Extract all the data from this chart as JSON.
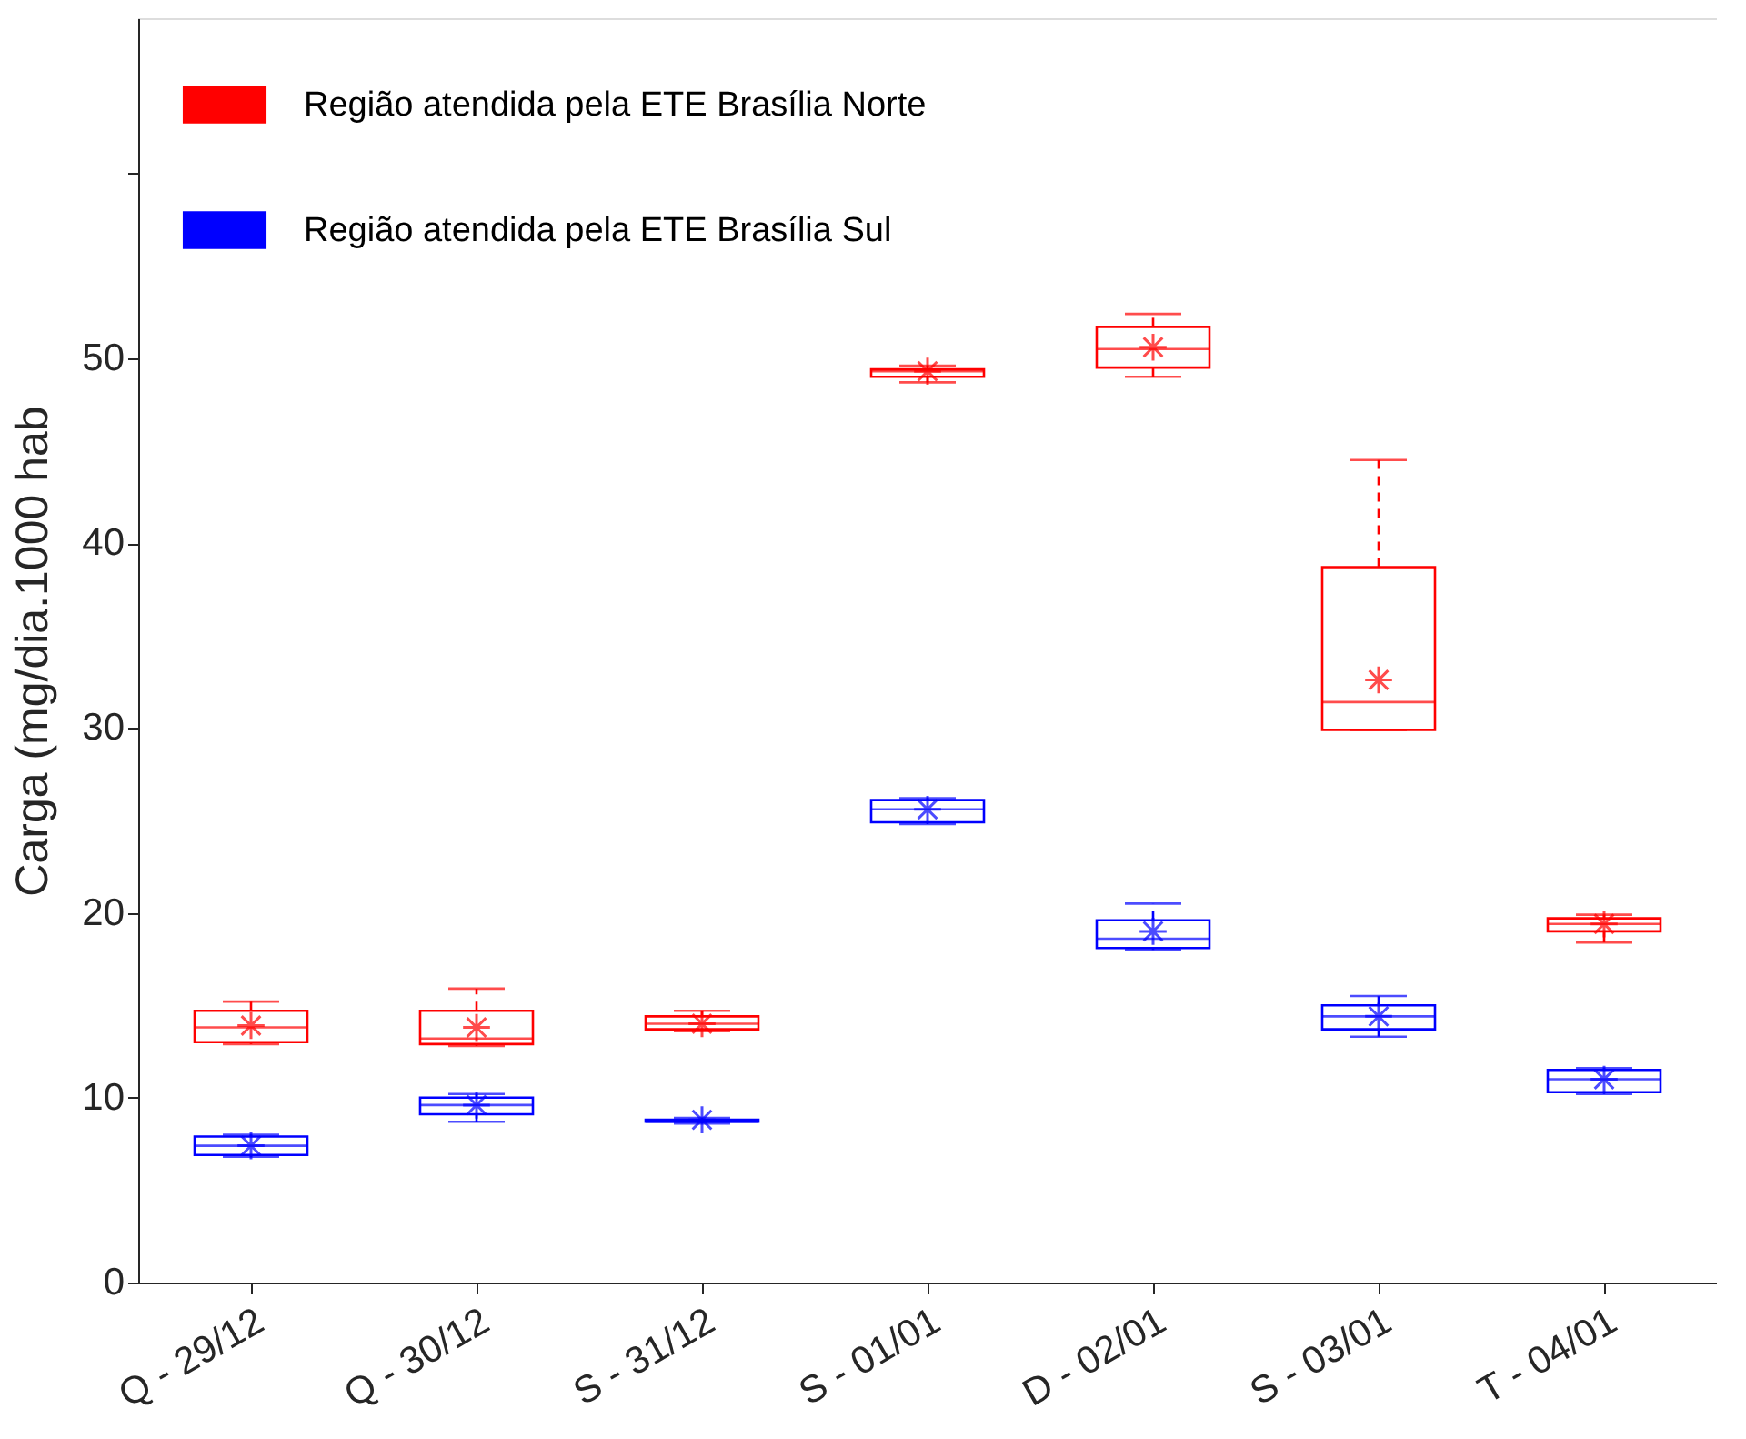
{
  "chart_data": {
    "type": "box",
    "ylabel": "Carga (mg/dia.1000 hab",
    "categories": [
      "Q - 29/12",
      "Q - 30/12",
      "S - 31/12",
      "S - 01/01",
      "D - 02/01",
      "S - 03/01",
      "T - 04/01"
    ],
    "ylim": [
      0,
      68.4
    ],
    "yticks": [
      0,
      10,
      20,
      30,
      40,
      50,
      {
        "value": 60,
        "label": null
      }
    ],
    "grid": false,
    "legend": "top left",
    "marker": "star",
    "series": [
      {
        "name": "Região atendida pela ETE Brasília Norte",
        "color": "#ff0000",
        "boxes": [
          {
            "low": 12.9,
            "q1": 13.0,
            "median": 13.8,
            "q3": 14.7,
            "high": 15.2,
            "mean": 13.9
          },
          {
            "low": 12.8,
            "q1": 12.9,
            "median": 13.2,
            "q3": 14.7,
            "high": 15.9,
            "mean": 13.8
          },
          {
            "low": 13.6,
            "q1": 13.7,
            "median": 14.0,
            "q3": 14.4,
            "high": 14.7,
            "mean": 14.0
          },
          {
            "low": 48.7,
            "q1": 49.0,
            "median": 49.3,
            "q3": 49.4,
            "high": 49.6,
            "mean": 49.3
          },
          {
            "low": 49.0,
            "q1": 49.5,
            "median": 50.5,
            "q3": 51.7,
            "high": 52.4,
            "mean": 50.6
          },
          {
            "low": 29.9,
            "q1": 29.9,
            "median": 31.4,
            "q3": 38.7,
            "high": 44.5,
            "mean": 32.6
          },
          {
            "low": 18.4,
            "q1": 19.0,
            "median": 19.4,
            "q3": 19.7,
            "high": 19.9,
            "mean": 19.4
          }
        ]
      },
      {
        "name": "Região atendida pela ETE Brasília Sul",
        "color": "#0000ff",
        "boxes": [
          {
            "low": 6.8,
            "q1": 6.9,
            "median": 7.4,
            "q3": 7.9,
            "high": 8.0,
            "mean": 7.4
          },
          {
            "low": 8.7,
            "q1": 9.1,
            "median": 9.6,
            "q3": 10.0,
            "high": 10.2,
            "mean": 9.6
          },
          {
            "low": 8.6,
            "q1": 8.7,
            "median": 8.7,
            "q3": 8.8,
            "high": 8.9,
            "mean": 8.8
          },
          {
            "low": 24.8,
            "q1": 24.9,
            "median": 25.6,
            "q3": 26.1,
            "high": 26.2,
            "mean": 25.6
          },
          {
            "low": 18.0,
            "q1": 18.1,
            "median": 18.6,
            "q3": 19.6,
            "high": 20.5,
            "mean": 19.0
          },
          {
            "low": 13.3,
            "q1": 13.7,
            "median": 14.4,
            "q3": 15.0,
            "high": 15.5,
            "mean": 14.4
          },
          {
            "low": 10.2,
            "q1": 10.3,
            "median": 11.0,
            "q3": 11.5,
            "high": 11.6,
            "mean": 11.0
          }
        ]
      }
    ]
  }
}
